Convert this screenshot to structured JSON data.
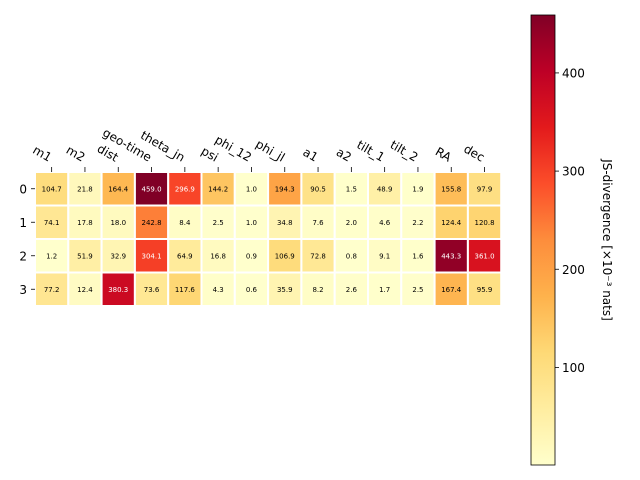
{
  "chart_data": {
    "type": "heatmap",
    "x_labels": [
      "m1",
      "m2",
      "dist",
      "geo-time",
      "theta_jn",
      "psi",
      "phi_12",
      "phi_jl",
      "a1",
      "a2",
      "tilt_1",
      "tilt_2",
      "RA",
      "dec"
    ],
    "y_labels": [
      "0",
      "1",
      "2",
      "3"
    ],
    "values": [
      [
        104.7,
        21.8,
        164.4,
        459.0,
        296.9,
        144.2,
        1.0,
        194.3,
        90.5,
        1.5,
        48.9,
        1.9,
        155.8,
        97.9
      ],
      [
        74.1,
        17.8,
        18.0,
        242.8,
        8.4,
        2.5,
        1.0,
        34.8,
        7.6,
        2.0,
        4.6,
        2.2,
        124.4,
        120.8
      ],
      [
        1.2,
        51.9,
        32.9,
        304.1,
        64.9,
        16.8,
        0.9,
        106.9,
        72.8,
        0.8,
        9.1,
        1.6,
        443.3,
        361.0
      ],
      [
        77.2,
        12.4,
        380.3,
        73.6,
        117.6,
        4.3,
        0.6,
        35.9,
        8.2,
        2.6,
        1.7,
        2.5,
        167.4,
        95.9
      ]
    ],
    "value_labels": [
      [
        "104.7",
        "21.8",
        "164.4",
        "459.0",
        "296.9",
        "144.2",
        "1.0",
        "194.3",
        "90.5",
        "1.5",
        "48.9",
        "1.9",
        "155.8",
        "97.9"
      ],
      [
        "74.1",
        "17.8",
        "18.0",
        "242.8",
        "8.4",
        "2.5",
        "1.0",
        "34.8",
        "7.6",
        "2.0",
        "4.6",
        "2.2",
        "124.4",
        "120.8"
      ],
      [
        "1.2",
        "51.9",
        "32.9",
        "304.1",
        "64.9",
        "16.8",
        "0.9",
        "106.9",
        "72.8",
        "0.8",
        "9.1",
        "1.6",
        "443.3",
        "361.0"
      ],
      [
        "77.2",
        "12.4",
        "380.3",
        "73.6",
        "117.6",
        "4.3",
        "0.6",
        "35.9",
        "8.2",
        "2.6",
        "1.7",
        "2.5",
        "167.4",
        "95.9"
      ]
    ],
    "colormap": "YlOrRd",
    "colorbar": {
      "range": [
        0.6,
        459.0
      ],
      "ticks": [
        100,
        200,
        300,
        400
      ],
      "label": "JS-divergence [×10⁻³ nats]"
    },
    "x_axis_position": "top",
    "grid": false
  }
}
